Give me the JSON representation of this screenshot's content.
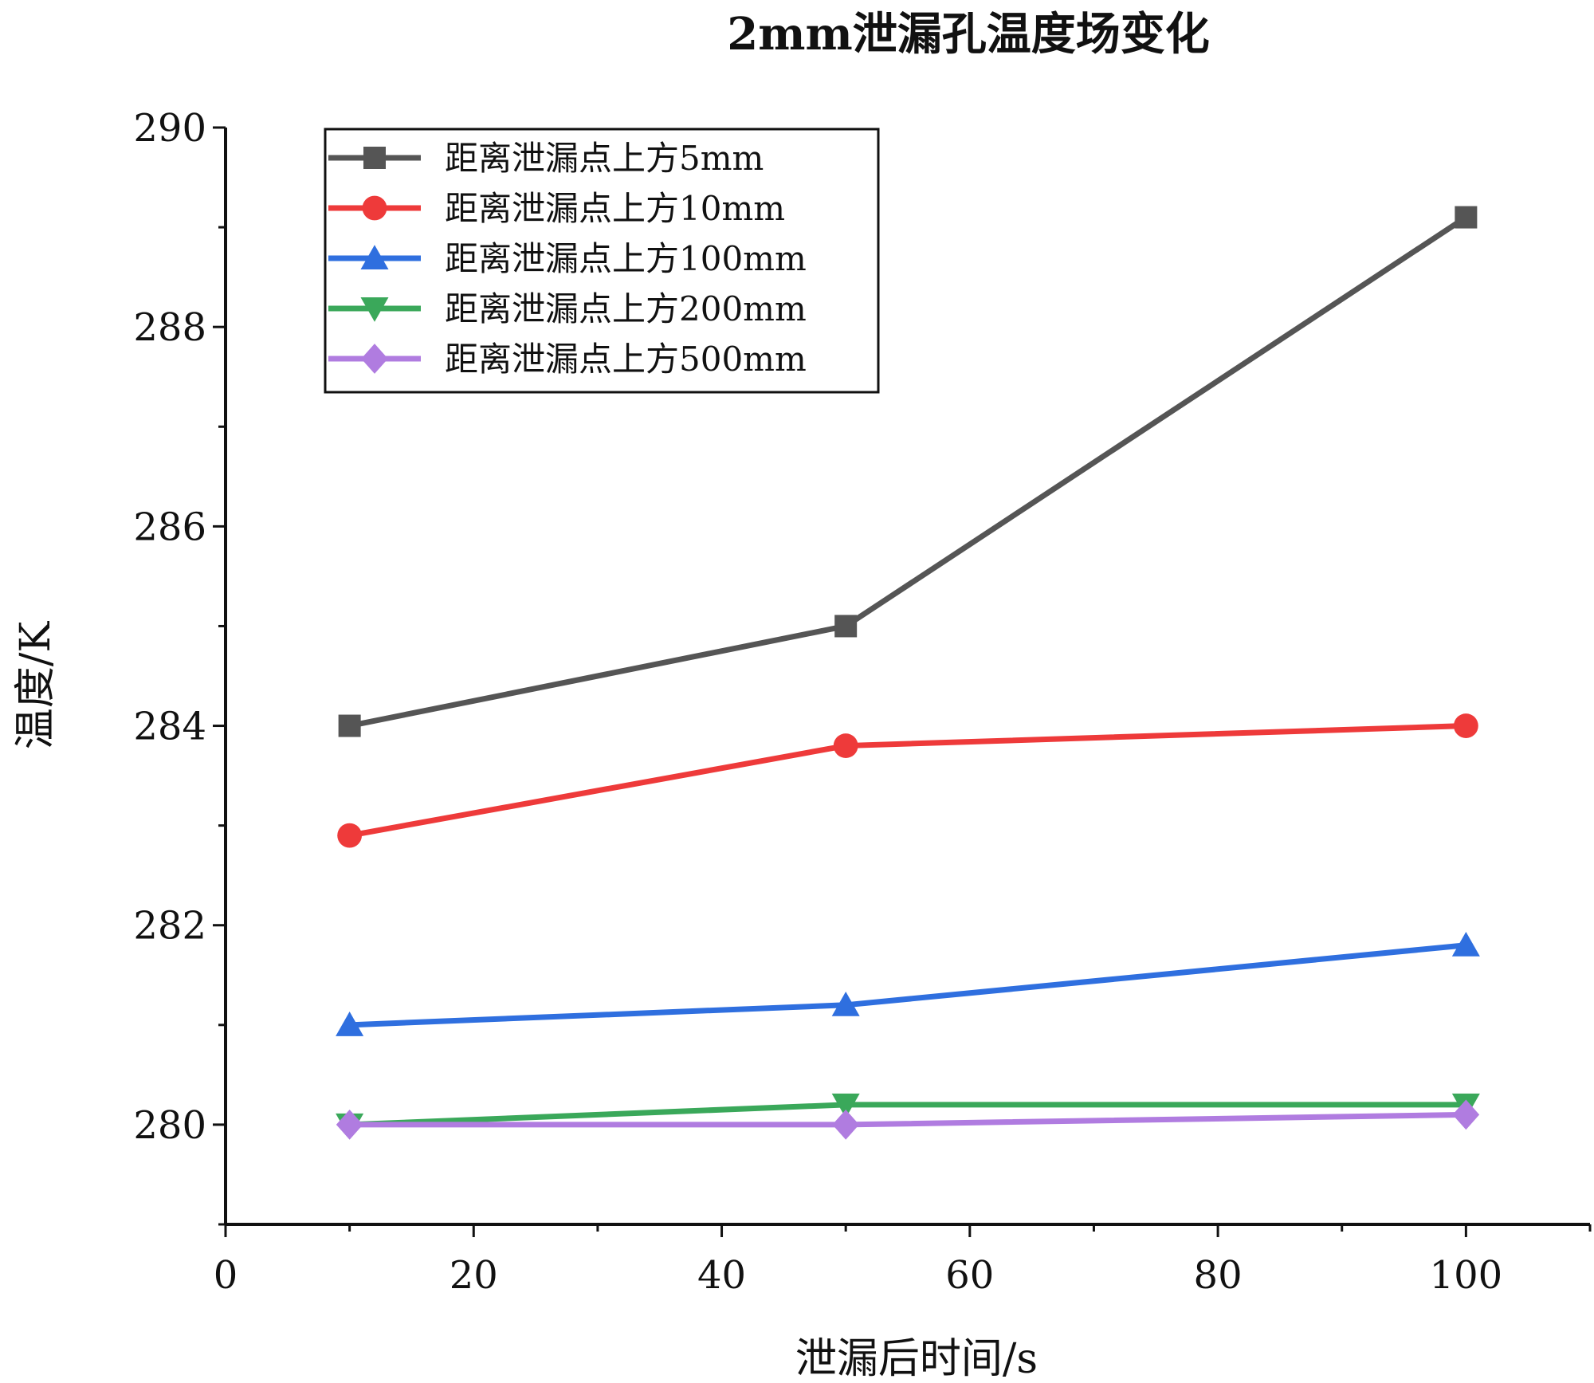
{
  "chart_data": {
    "type": "line",
    "title": "2mm泄漏孔温度场变化",
    "xlabel": "泄漏后时间/s",
    "ylabel": "温度/K",
    "xlim": [
      0,
      110
    ],
    "ylim": [
      279,
      290
    ],
    "xticks": [
      0,
      20,
      40,
      60,
      80,
      100
    ],
    "xtick_labels": [
      "0",
      "20",
      "40",
      "60",
      "80",
      "100"
    ],
    "yticks": [
      280,
      282,
      284,
      286,
      288,
      290
    ],
    "ytick_labels": [
      "280",
      "282",
      "284",
      "286",
      "288",
      "290"
    ],
    "grid": false,
    "legend_position": "top-left",
    "x": [
      10,
      50,
      100
    ],
    "series": [
      {
        "name": "距离泄漏点上方5mm",
        "values": [
          284.0,
          285.0,
          289.1
        ],
        "color": "#555555",
        "marker": "square"
      },
      {
        "name": "距离泄漏点上方10mm",
        "values": [
          282.9,
          283.8,
          284.0
        ],
        "color": "#ee3a3a",
        "marker": "circle"
      },
      {
        "name": "距离泄漏点上方100mm",
        "values": [
          281.0,
          281.2,
          281.8
        ],
        "color": "#2f6fdf",
        "marker": "triangle-up"
      },
      {
        "name": "距离泄漏点上方200mm",
        "values": [
          280.0,
          280.2,
          280.2
        ],
        "color": "#3aa85a",
        "marker": "triangle-down"
      },
      {
        "name": "距离泄漏点上方500mm",
        "values": [
          280.0,
          280.0,
          280.1
        ],
        "color": "#b07ce0",
        "marker": "diamond"
      }
    ]
  }
}
